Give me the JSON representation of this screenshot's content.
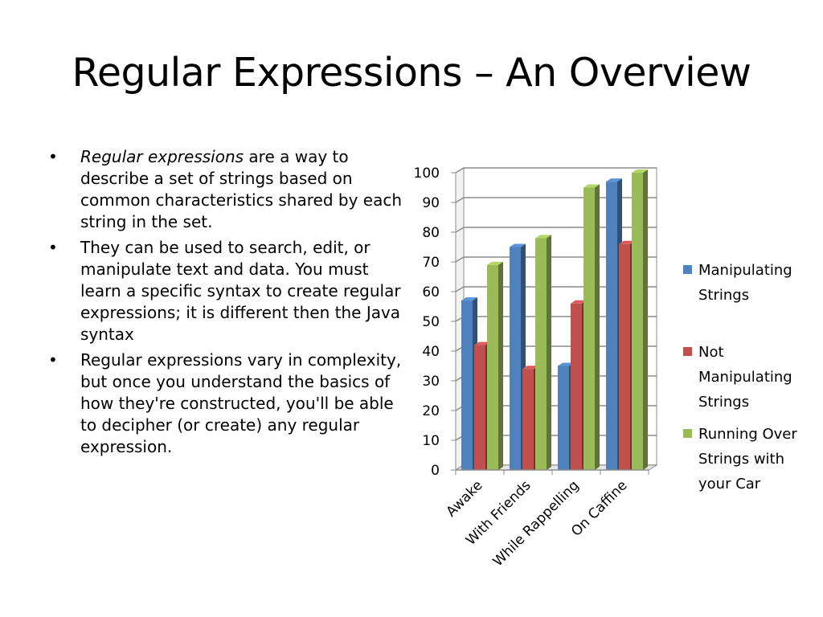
{
  "slide": {
    "title": "Regular Expressions – An Overview",
    "bullets": [
      {
        "emphasis": "Regular expressions",
        "text": " are a way to describe a set of strings based on common characteristics shared by each string in the set."
      },
      {
        "emphasis": "",
        "text": "They can be used to search, edit, or manipulate text and data. You must learn a specific syntax to create regular expressions; it is different then the Java syntax"
      },
      {
        "emphasis": "",
        "text": "Regular expressions vary in complexity, but once you understand the basics of how they're constructed, you'll be able to decipher (or create) any regular expression."
      }
    ]
  },
  "chart_data": {
    "type": "bar",
    "style": "3d-clustered-column",
    "categories": [
      "Awake",
      "With Friends",
      "While Rappelling",
      "On Caffine"
    ],
    "series": [
      {
        "name": "Manipulating Strings",
        "legend_lines": [
          "Manipulating",
          "Strings"
        ],
        "color": "#4F81BD",
        "values": [
          57,
          75,
          35,
          97
        ]
      },
      {
        "name": "Not Manipulating Strings",
        "legend_lines": [
          "Not",
          "Manipulating",
          "Strings"
        ],
        "color": "#C0504D",
        "values": [
          42,
          34,
          56,
          76
        ]
      },
      {
        "name": "Running Over Strings with your Car",
        "legend_lines": [
          "Running Over",
          "Strings with",
          "your Car"
        ],
        "color": "#9BBB59",
        "values": [
          69,
          78,
          95,
          100
        ]
      }
    ],
    "yticks": [
      0,
      10,
      20,
      30,
      40,
      50,
      60,
      70,
      80,
      90,
      100
    ],
    "ylim": [
      0,
      100
    ],
    "grid": true,
    "legend": "right"
  }
}
